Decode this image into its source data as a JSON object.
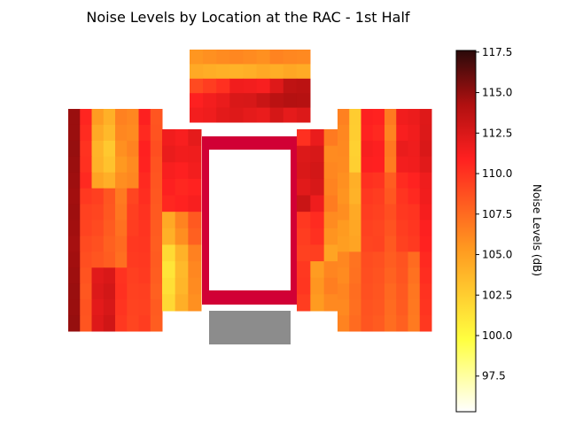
{
  "chart_data": {
    "type": "heatmap",
    "title": "Noise Levels by Location at the RAC - 1st Half",
    "colorbar": {
      "label": "Noise Levels (dB)",
      "min": 95.3,
      "max": 117.6,
      "ticks": [
        "97.5",
        "100.0",
        "102.5",
        "105.0",
        "107.5",
        "110.0",
        "112.5",
        "115.0",
        "117.5"
      ],
      "colormap": "hot_r"
    },
    "grid": "off",
    "axes_visible": false,
    "sections": [
      {
        "name": "top-stand",
        "rows": [
          [
            105.5,
            105.8,
            106.0,
            106.2,
            106.0,
            105.8,
            106.4,
            106.2,
            106.1
          ],
          [
            104.5,
            104.3,
            104.1,
            104.0,
            104.2,
            104.5,
            104.3,
            104.6,
            104.4
          ],
          [
            109.0,
            109.6,
            110.2,
            111.5,
            111.4,
            111.2,
            112.3,
            113.6,
            113.8
          ],
          [
            111.0,
            111.4,
            111.8,
            112.5,
            112.6,
            113.2,
            113.8,
            114.1,
            114.0
          ],
          [
            111.4,
            111.6,
            112.1,
            112.3,
            112.0,
            111.8,
            112.7,
            112.0,
            112.4
          ]
        ]
      },
      {
        "name": "left-stand",
        "rows": [
          [
            114.8,
            110.7,
            105.2,
            104.1,
            106.5,
            106.2,
            111.0,
            108.5
          ],
          [
            114.8,
            110.4,
            104.5,
            103.6,
            106.2,
            106.0,
            110.5,
            108.6
          ],
          [
            114.9,
            110.1,
            103.9,
            102.8,
            105.8,
            106.4,
            110.9,
            108.8
          ],
          [
            114.8,
            110.2,
            104.0,
            103.1,
            105.4,
            106.0,
            110.8,
            108.6
          ],
          [
            114.7,
            110.5,
            104.8,
            104.2,
            105.9,
            106.2,
            110.5,
            108.5
          ],
          [
            114.6,
            109.8,
            109.5,
            108.5,
            106.8,
            109.2,
            110.3,
            108.4
          ],
          [
            114.7,
            109.4,
            109.2,
            108.4,
            107.0,
            109.5,
            110.1,
            108.3
          ],
          [
            114.6,
            109.3,
            109.0,
            108.2,
            107.2,
            109.6,
            110.0,
            108.2
          ],
          [
            114.5,
            109.0,
            108.7,
            108.0,
            107.5,
            109.8,
            109.9,
            108.1
          ],
          [
            114.6,
            108.8,
            108.5,
            108.1,
            107.3,
            109.7,
            109.8,
            108.2
          ],
          [
            114.7,
            108.6,
            112.2,
            112.5,
            110.1,
            109.5,
            109.7,
            108.1
          ],
          [
            114.8,
            108.4,
            112.4,
            112.8,
            110.2,
            109.4,
            109.5,
            108.0
          ],
          [
            114.8,
            108.6,
            112.1,
            112.6,
            110.0,
            109.3,
            109.4,
            108.2
          ],
          [
            114.9,
            108.5,
            112.3,
            112.9,
            109.8,
            109.2,
            109.6,
            108.1
          ]
        ]
      },
      {
        "name": "left-inner",
        "rows": [
          [
            111.5,
            111.2,
            112.0
          ],
          [
            111.8,
            111.5,
            111.6
          ],
          [
            111.2,
            111.0,
            111.4
          ],
          [
            111.0,
            110.6,
            110.8
          ],
          [
            110.6,
            110.8,
            111.2
          ],
          [
            104.5,
            106.4,
            108.3
          ],
          [
            104.1,
            105.9,
            108.0
          ],
          [
            101.8,
            104.0,
            106.5
          ],
          [
            101.2,
            103.6,
            106.2
          ],
          [
            101.5,
            103.8,
            106.0
          ],
          [
            101.9,
            104.2,
            105.8
          ]
        ]
      },
      {
        "name": "court-boundary",
        "label": "",
        "value_note": "court outline"
      },
      {
        "name": "right-inner",
        "rows": [
          [
            110.2,
            111.8,
            106.8
          ],
          [
            112.4,
            112.6,
            106.0
          ],
          [
            112.5,
            112.8,
            106.2
          ],
          [
            112.2,
            112.6,
            106.4
          ],
          [
            113.2,
            111.6,
            106.7
          ],
          [
            109.8,
            110.4,
            106.0
          ],
          [
            109.6,
            110.2,
            105.6
          ],
          [
            109.4,
            109.5,
            104.8
          ],
          [
            109.8,
            105.2,
            106.3
          ],
          [
            109.9,
            105.5,
            106.6
          ],
          [
            109.6,
            105.3,
            106.1
          ]
        ]
      },
      {
        "name": "right-stand",
        "rows": [
          [
            106.5,
            102.6,
            111.0,
            110.8,
            106.8,
            111.5,
            111.7,
            112.3
          ],
          [
            106.2,
            102.5,
            110.8,
            110.5,
            106.4,
            111.2,
            111.5,
            112.4
          ],
          [
            106.1,
            102.3,
            111.2,
            111.0,
            106.9,
            111.8,
            111.6,
            112.5
          ],
          [
            106.0,
            102.4,
            111.0,
            110.9,
            106.7,
            111.4,
            111.5,
            112.2
          ],
          [
            105.8,
            104.2,
            110.2,
            110.0,
            108.1,
            110.4,
            110.8,
            111.6
          ],
          [
            105.6,
            104.0,
            109.8,
            109.6,
            108.4,
            110.0,
            110.5,
            111.5
          ],
          [
            105.9,
            104.5,
            109.6,
            109.4,
            108.8,
            109.8,
            110.0,
            111.3
          ],
          [
            105.3,
            104.6,
            109.4,
            109.2,
            108.6,
            109.6,
            109.9,
            111.0
          ],
          [
            105.1,
            104.8,
            109.2,
            109.3,
            108.3,
            109.4,
            109.7,
            110.8
          ],
          [
            106.2,
            107.1,
            108.9,
            108.7,
            108.1,
            108.6,
            107.5,
            110.5
          ],
          [
            106.0,
            107.2,
            108.8,
            108.6,
            107.9,
            108.5,
            107.2,
            110.3
          ],
          [
            106.3,
            107.4,
            108.7,
            108.5,
            107.6,
            108.3,
            107.0,
            110.1
          ],
          [
            106.1,
            107.3,
            108.6,
            108.4,
            107.5,
            108.2,
            106.9,
            110.0
          ],
          [
            106.4,
            107.5,
            108.5,
            108.2,
            107.4,
            108.0,
            106.8,
            109.8
          ]
        ]
      },
      {
        "name": "bottom-block",
        "color": "#8c8c8c",
        "value_note": "no data"
      }
    ]
  }
}
